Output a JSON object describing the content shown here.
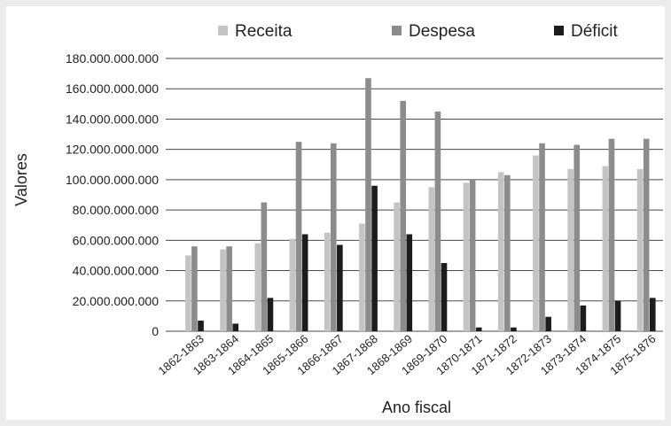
{
  "chart_data": {
    "type": "bar",
    "title": "",
    "xlabel": "Ano fiscal",
    "ylabel": "Valores",
    "ylim": [
      0,
      180000000000
    ],
    "yticks": [
      "0",
      "20.000.000.000",
      "40.000.000.000",
      "60.000.000.000",
      "80.000.000.000",
      "100.000.000.000",
      "120.000.000.000",
      "140.000.000.000",
      "160.000.000.000",
      "180.000.000.000"
    ],
    "ytick_values": [
      0,
      20000000000,
      40000000000,
      60000000000,
      80000000000,
      100000000000,
      120000000000,
      140000000000,
      160000000000,
      180000000000
    ],
    "grid": true,
    "legend_position": "top",
    "categories": [
      "1862-1863",
      "1863-1864",
      "1864-1865",
      "1865-1866",
      "1866-1867",
      "1867-1868",
      "1868-1869",
      "1869-1870",
      "1870-1871",
      "1871-1872",
      "1872-1873",
      "1873-1874",
      "1874-1875",
      "1875-1876"
    ],
    "series": [
      {
        "name": "Receita",
        "color": "#c4c4c4",
        "values": [
          50000000000,
          54000000000,
          58000000000,
          61000000000,
          65000000000,
          71000000000,
          85000000000,
          95000000000,
          98000000000,
          105000000000,
          116000000000,
          107000000000,
          109000000000,
          107000000000
        ]
      },
      {
        "name": "Despesa",
        "color": "#8c8c8c",
        "values": [
          56000000000,
          56000000000,
          85000000000,
          125000000000,
          124000000000,
          167000000000,
          152000000000,
          145000000000,
          100000000000,
          103000000000,
          124000000000,
          123000000000,
          127000000000,
          127000000000
        ]
      },
      {
        "name": "Déficit",
        "color": "#1c1c1c",
        "values": [
          7000000000,
          5000000000,
          22000000000,
          64000000000,
          57000000000,
          96000000000,
          64000000000,
          45000000000,
          2500000000,
          2500000000,
          9500000000,
          17000000000,
          20000000000,
          22000000000
        ]
      }
    ]
  }
}
